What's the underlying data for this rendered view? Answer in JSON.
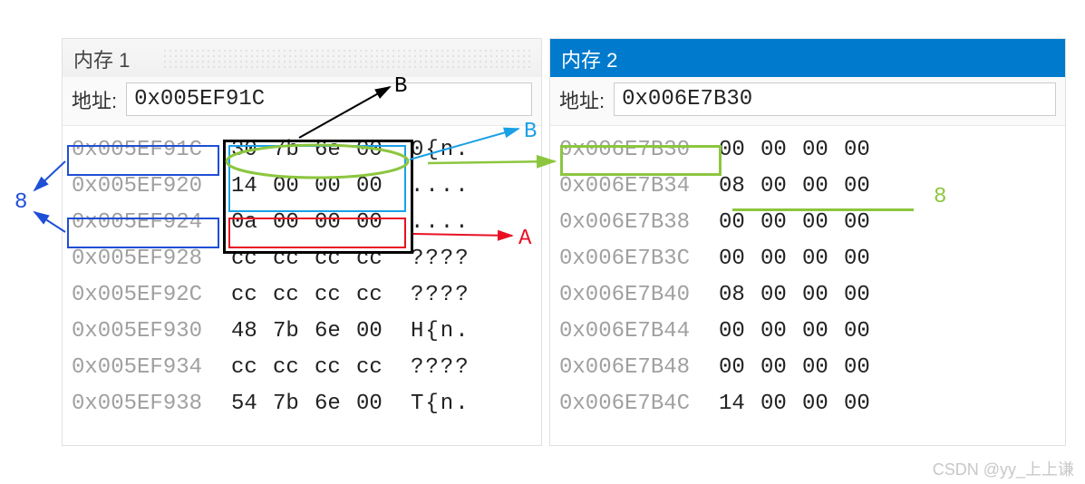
{
  "colors": {
    "panel_active_bg": "#007acc",
    "panel_inactive_bg": "#f4f4f4",
    "panel_active_fg": "#ffffff",
    "panel_inactive_fg": "#444444",
    "gray_text": "#a0a0a0",
    "border_black": "#000000",
    "border_blue": "#1f4fd6",
    "border_cyan": "#1aa0e6",
    "border_red": "#e81123",
    "border_lime": "#8cc63f",
    "text_cyan": "#1aa0e6",
    "text_red": "#e81123",
    "text_blue": "#1f4fd6",
    "text_lime": "#8cc63f",
    "text_black": "#000000",
    "watermark": "#c8c8c8"
  },
  "panel1": {
    "title": "内存 1",
    "active": false,
    "addr_label": "地址:",
    "addr_value": "0x005EF91C",
    "rows": [
      {
        "addr": "0x005EF91C",
        "hex": [
          "30",
          "7b",
          "6e",
          "00"
        ],
        "ascii": "0{n."
      },
      {
        "addr": "0x005EF920",
        "hex": [
          "14",
          "00",
          "00",
          "00"
        ],
        "ascii": "...."
      },
      {
        "addr": "0x005EF924",
        "hex": [
          "0a",
          "00",
          "00",
          "00"
        ],
        "ascii": "...."
      },
      {
        "addr": "0x005EF928",
        "hex": [
          "cc",
          "cc",
          "cc",
          "cc"
        ],
        "ascii": "????"
      },
      {
        "addr": "0x005EF92C",
        "hex": [
          "cc",
          "cc",
          "cc",
          "cc"
        ],
        "ascii": "????"
      },
      {
        "addr": "0x005EF930",
        "hex": [
          "48",
          "7b",
          "6e",
          "00"
        ],
        "ascii": "H{n."
      },
      {
        "addr": "0x005EF934",
        "hex": [
          "cc",
          "cc",
          "cc",
          "cc"
        ],
        "ascii": "????"
      },
      {
        "addr": "0x005EF938",
        "hex": [
          "54",
          "7b",
          "6e",
          "00"
        ],
        "ascii": "T{n."
      }
    ]
  },
  "panel2": {
    "title": "内存 2",
    "active": true,
    "addr_label": "地址:",
    "addr_value": "0x006E7B30",
    "rows": [
      {
        "addr": "0x006E7B30",
        "hex": [
          "00",
          "00",
          "00",
          "00"
        ],
        "ascii": ""
      },
      {
        "addr": "0x006E7B34",
        "hex": [
          "08",
          "00",
          "00",
          "00"
        ],
        "ascii": ""
      },
      {
        "addr": "0x006E7B38",
        "hex": [
          "00",
          "00",
          "00",
          "00"
        ],
        "ascii": ""
      },
      {
        "addr": "0x006E7B3C",
        "hex": [
          "00",
          "00",
          "00",
          "00"
        ],
        "ascii": ""
      },
      {
        "addr": "0x006E7B40",
        "hex": [
          "08",
          "00",
          "00",
          "00"
        ],
        "ascii": ""
      },
      {
        "addr": "0x006E7B44",
        "hex": [
          "00",
          "00",
          "00",
          "00"
        ],
        "ascii": ""
      },
      {
        "addr": "0x006E7B48",
        "hex": [
          "00",
          "00",
          "00",
          "00"
        ],
        "ascii": ""
      },
      {
        "addr": "0x006E7B4C",
        "hex": [
          "14",
          "00",
          "00",
          "00"
        ],
        "ascii": ""
      }
    ]
  },
  "annotations": {
    "B_black": "B",
    "B_cyan": "B",
    "A_red": "A",
    "eight_blue": "8",
    "eight_lime": "8"
  },
  "watermark": "CSDN @yy_上上谦"
}
